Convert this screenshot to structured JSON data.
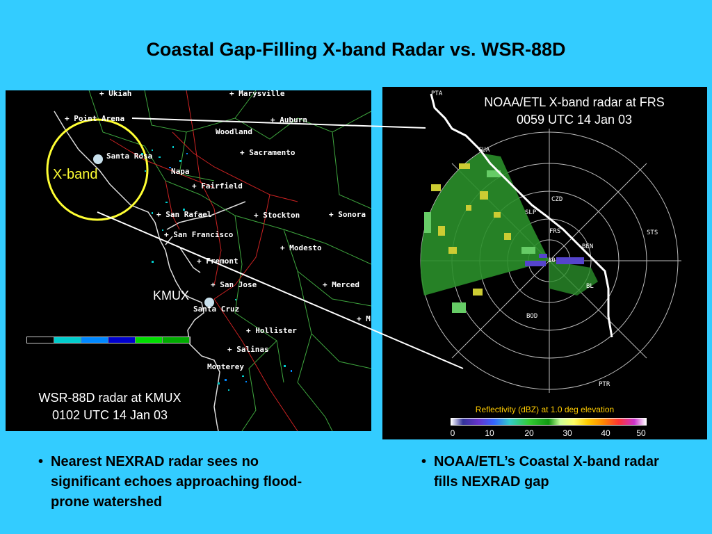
{
  "title": "Coastal Gap-Filling X-band Radar vs. WSR-88D",
  "left_map": {
    "cities": [
      "+ Ukiah",
      "+ Marysville",
      "+ Point Arena",
      "+ Auburn",
      "Woodland",
      "+ Sacramento",
      "Santa Rosa",
      "Napa",
      "+ Fairfield",
      "+ San Rafael",
      "+ Stockton",
      "+ Sonora",
      "+ San Francisco",
      "+ Modesto",
      "+ Fremont",
      "+ San Jose",
      "+ Merced",
      "Santa Cruz",
      "+ Hollister",
      "+ Salinas",
      "Monterey",
      "+ M"
    ],
    "xband_label": "X-band",
    "kmux_label": "KMUX",
    "caption_line1": "WSR-88D radar at KMUX",
    "caption_line2": "0102 UTC 14 Jan 03",
    "colorbar": [
      "#000000",
      "#00CCCC",
      "#0088FF",
      "#0000CC",
      "#00DD00",
      "#00AA00"
    ]
  },
  "right_map": {
    "caption_line1": "NOAA/ETL X-band radar at FRS",
    "caption_line2": "0059 UTC 14 Jan 03",
    "sites": [
      "PTA",
      "GUA",
      "CZD",
      "SLP",
      "FRS",
      "STS",
      "BEN",
      "10",
      "BL",
      "BOD",
      "PTR"
    ],
    "reflectivity_title": "Reflectivity (dBZ) at 1.0 deg elevation",
    "ticks": [
      "0",
      "10",
      "20",
      "30",
      "40",
      "50"
    ]
  },
  "bullets": {
    "left": "Nearest NEXRAD radar sees no significant echoes approaching flood-prone watershed",
    "right": "NOAA/ETL’s Coastal X-band radar fills NEXRAD gap"
  },
  "colors": {
    "background": "#33CCFF",
    "xband_circle": "#FFFF33"
  }
}
